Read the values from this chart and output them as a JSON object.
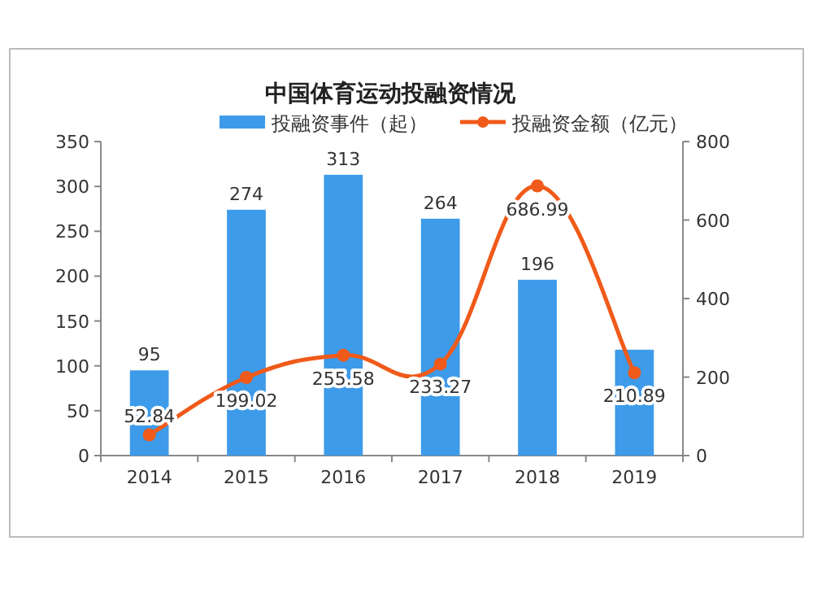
{
  "chart_data": {
    "type": "bar",
    "title": "中国体育运动投融资情况",
    "categories": [
      "2014",
      "2015",
      "2016",
      "2017",
      "2018",
      "2019"
    ],
    "series": [
      {
        "name": "投融资事件（起）",
        "color": "#3d9be9",
        "values": [
          95,
          274,
          313,
          264,
          196,
          118
        ],
        "value_labels": [
          "95",
          "274",
          "313",
          "264",
          "196",
          null
        ]
      },
      {
        "name": "投融资金额（亿元）",
        "type": "line",
        "axis": "y2",
        "color": "#f05a1a",
        "marker": "circle",
        "values": [
          52.84,
          199.02,
          255.58,
          233.27,
          686.99,
          210.89
        ],
        "value_labels": [
          "52.84",
          "199.02",
          "255.58",
          "233.27",
          "686.99",
          "210.89"
        ]
      }
    ],
    "ylim": [
      0,
      350
    ],
    "yticks": [
      0,
      50,
      100,
      150,
      200,
      250,
      300,
      350
    ],
    "y2lim": [
      0,
      800
    ],
    "y2ticks": [
      0,
      200,
      400,
      600,
      800
    ],
    "grid": false,
    "legend": "top"
  }
}
